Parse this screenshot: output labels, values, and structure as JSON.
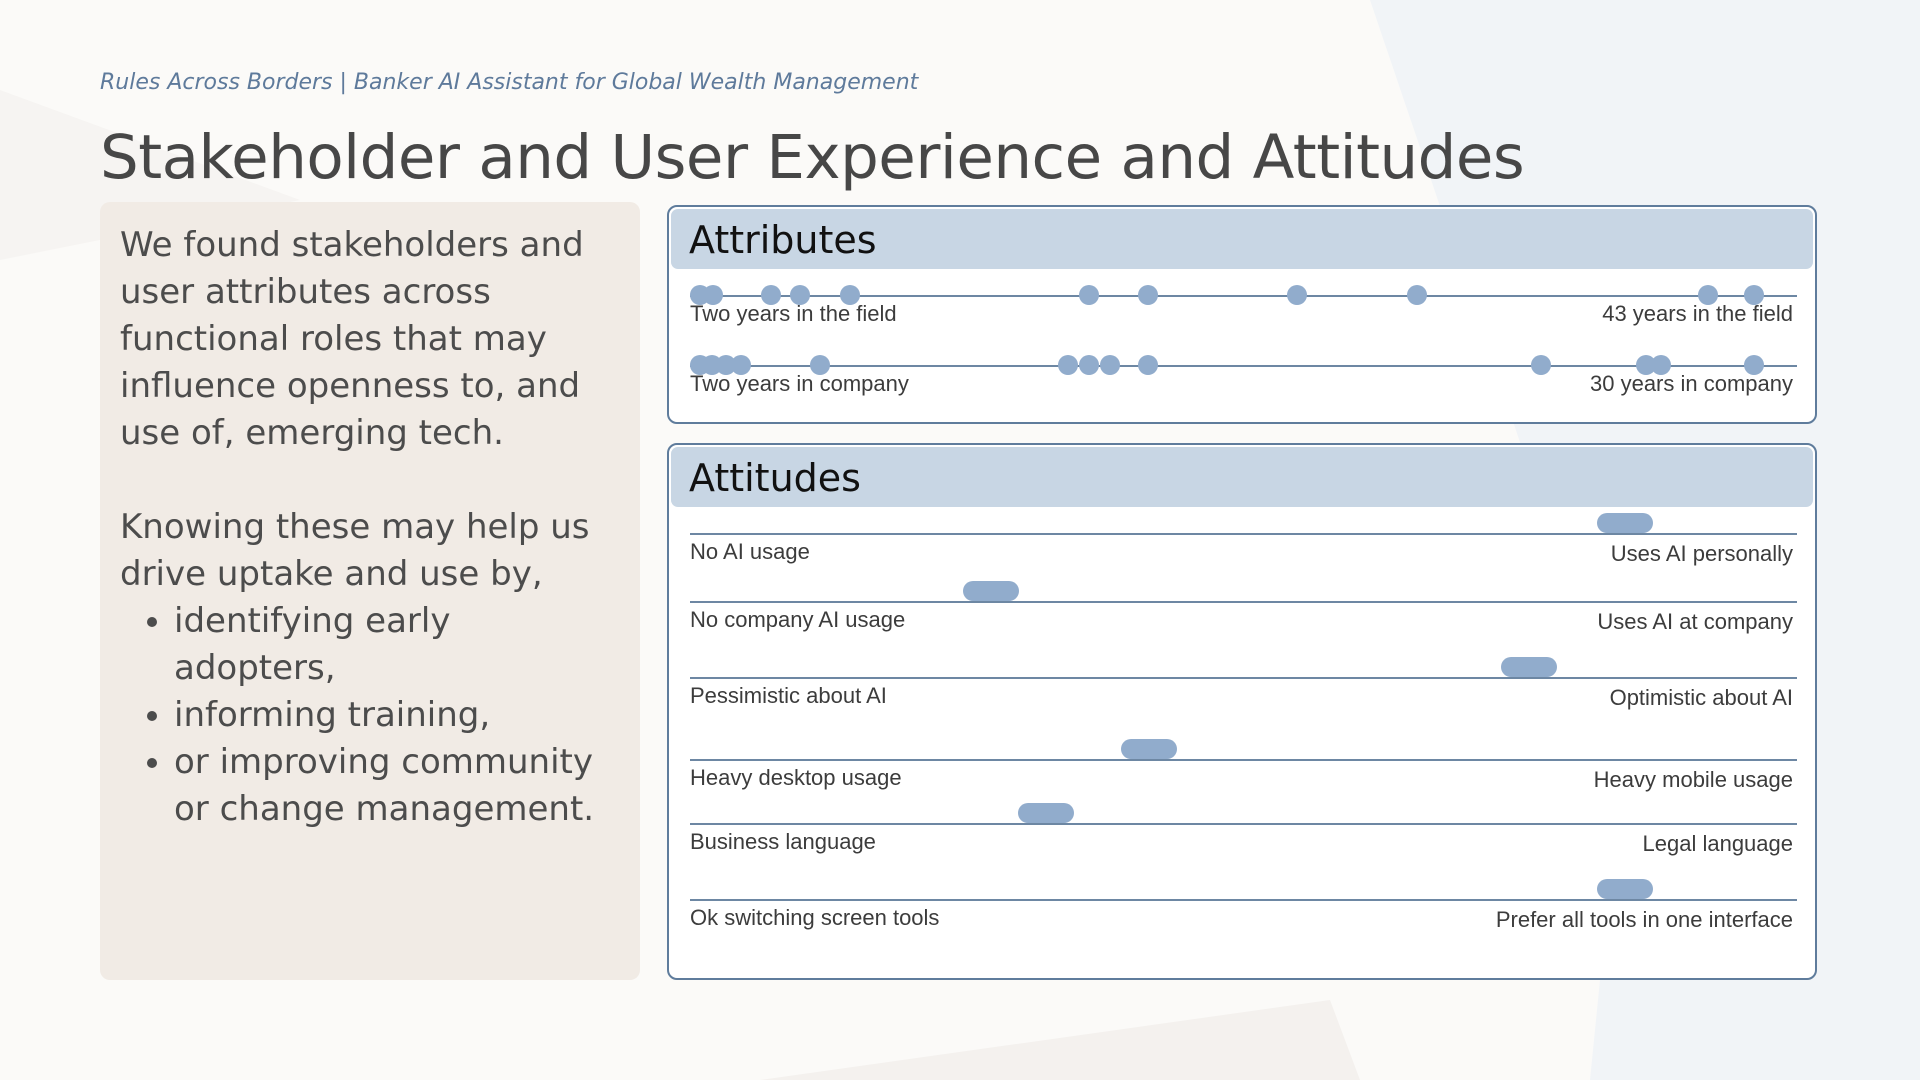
{
  "header": {
    "eyebrow": "Rules Across Borders |  Banker AI Assistant for Global Wealth Management",
    "title": "Stakeholder and User Experience and Attitudes"
  },
  "sidecard": {
    "paragraph1": "We found stakeholders and user attributes across functional roles that may influence openness to, and use of, emerging tech.",
    "paragraph2": "Knowing these may help us drive uptake and use by,",
    "bullets": [
      "identifying early adopters,",
      "informing training,",
      "or improving community or change management."
    ]
  },
  "attributes": {
    "title": "Attributes",
    "rows": [
      {
        "left_label": "Two years in the field",
        "right_label": "43 years in the field",
        "points": [
          0.0,
          0.012,
          0.065,
          0.092,
          0.138,
          0.358,
          0.412,
          0.549,
          0.66,
          0.927,
          0.97
        ]
      },
      {
        "left_label": "Two years in company",
        "right_label": "30 years in company",
        "points": [
          0.0,
          0.011,
          0.024,
          0.038,
          0.11,
          0.339,
          0.358,
          0.377,
          0.412,
          0.774,
          0.87,
          0.884,
          0.97
        ]
      }
    ]
  },
  "attitudes": {
    "title": "Attitudes",
    "scales": [
      {
        "left_label": "No AI usage",
        "right_label": "Uses AI personally",
        "position": 0.845
      },
      {
        "left_label": "No company AI usage",
        "right_label": "Uses AI at company",
        "position": 0.272
      },
      {
        "left_label": "Pessimistic about AI",
        "right_label": "Optimistic about AI",
        "position": 0.758
      },
      {
        "left_label": "Heavy desktop usage",
        "right_label": "Heavy mobile usage",
        "position": 0.415
      },
      {
        "left_label": "Business language",
        "right_label": "Legal language",
        "position": 0.322
      },
      {
        "left_label": "Ok switching screen tools",
        "right_label": "Prefer all tools in one interface",
        "position": 0.845
      }
    ]
  }
}
